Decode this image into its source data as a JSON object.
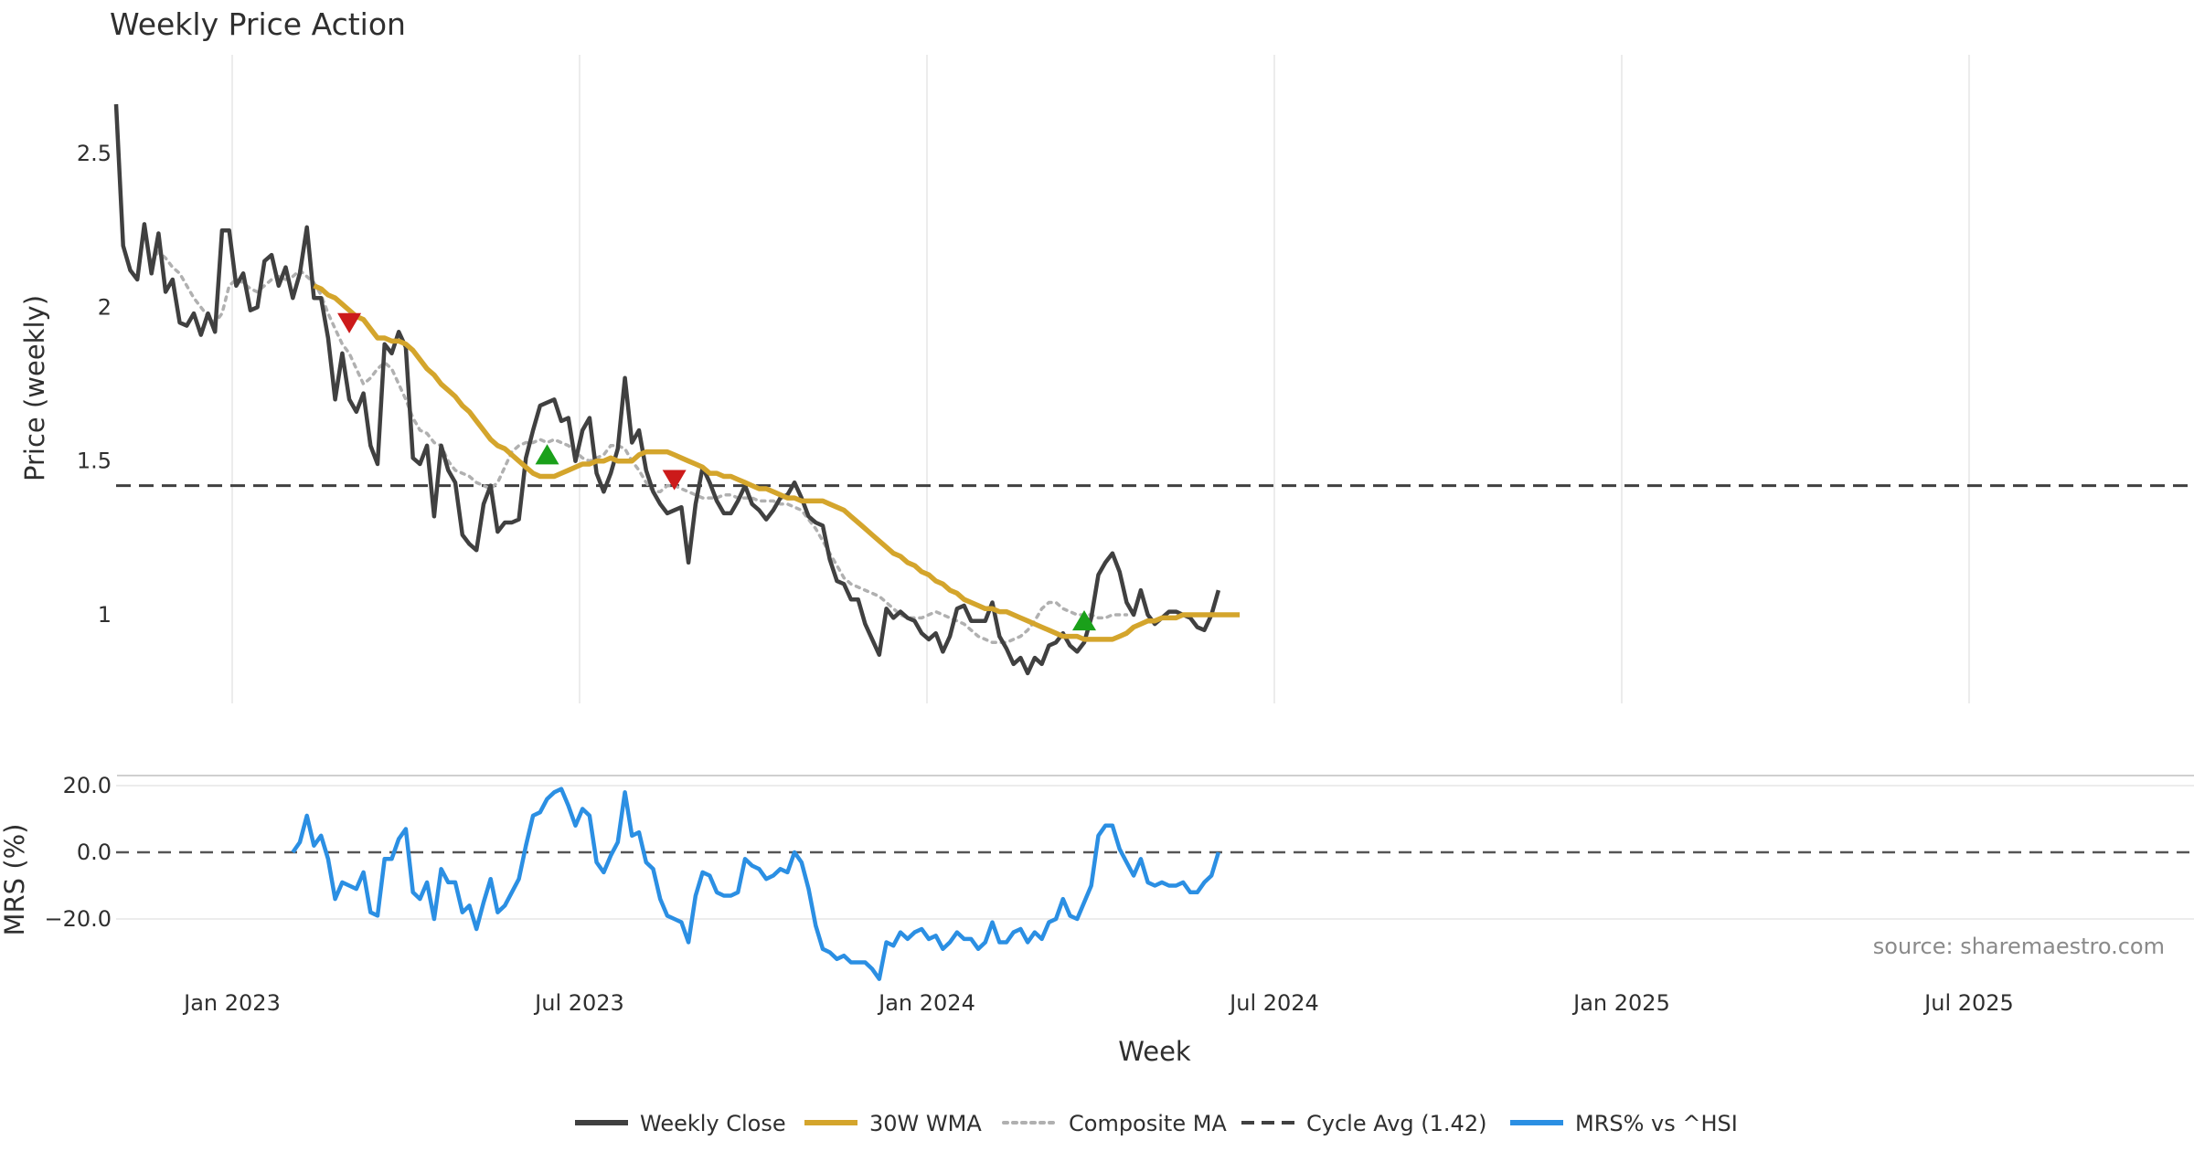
{
  "chart_data": {
    "type": "line",
    "title": "Weekly Price Action",
    "source": "source: sharemaestro.com",
    "xlabel": "Week",
    "x_ticks": [
      {
        "label": "Jan 2023",
        "t": 2023.0
      },
      {
        "label": "Jul 2023",
        "t": 2023.5
      },
      {
        "label": "Jan 2024",
        "t": 2024.0
      },
      {
        "label": "Jul 2024",
        "t": 2024.5
      },
      {
        "label": "Jan 2025",
        "t": 2025.0
      },
      {
        "label": "Jul 2025",
        "t": 2025.5
      }
    ],
    "x_range": [
      2022.833,
      2025.81
    ],
    "price_panel": {
      "ylabel": "Price (weekly)",
      "ylim": [
        0.72,
        2.82
      ],
      "y_ticks": [
        {
          "label": "1",
          "v": 1
        },
        {
          "label": "1.5",
          "v": 1.5
        },
        {
          "label": "2",
          "v": 2
        },
        {
          "label": "2.5",
          "v": 2.5
        }
      ],
      "cycle_avg": 1.42,
      "weekly_close": [
        2.66,
        2.2,
        2.12,
        2.09,
        2.27,
        2.11,
        2.24,
        2.05,
        2.09,
        1.95,
        1.94,
        1.98,
        1.91,
        1.98,
        1.92,
        2.25,
        2.25,
        2.07,
        2.11,
        1.99,
        2.0,
        2.15,
        2.17,
        2.07,
        2.13,
        2.03,
        2.11,
        2.26,
        2.03,
        2.03,
        1.9,
        1.7,
        1.85,
        1.7,
        1.66,
        1.72,
        1.55,
        1.49,
        1.88,
        1.85,
        1.92,
        1.87,
        1.51,
        1.49,
        1.55,
        1.32,
        1.55,
        1.47,
        1.43,
        1.26,
        1.23,
        1.21,
        1.36,
        1.42,
        1.27,
        1.3,
        1.3,
        1.31,
        1.51,
        1.6,
        1.68,
        1.69,
        1.7,
        1.63,
        1.64,
        1.5,
        1.6,
        1.64,
        1.46,
        1.4,
        1.46,
        1.54,
        1.77,
        1.56,
        1.6,
        1.47,
        1.4,
        1.36,
        1.33,
        1.34,
        1.35,
        1.17,
        1.36,
        1.48,
        1.43,
        1.37,
        1.33,
        1.33,
        1.37,
        1.42,
        1.36,
        1.34,
        1.31,
        1.34,
        1.38,
        1.39,
        1.43,
        1.38,
        1.32,
        1.3,
        1.29,
        1.18,
        1.11,
        1.1,
        1.05,
        1.05,
        0.97,
        0.92,
        0.87,
        1.02,
        0.99,
        1.01,
        0.99,
        0.98,
        0.94,
        0.92,
        0.94,
        0.88,
        0.93,
        1.02,
        1.03,
        0.98,
        0.98,
        0.98,
        1.04,
        0.93,
        0.89,
        0.84,
        0.86,
        0.81,
        0.86,
        0.84,
        0.9,
        0.91,
        0.94,
        0.9,
        0.88,
        0.91,
        0.99,
        1.13,
        1.17,
        1.2,
        1.14,
        1.04,
        1.0,
        1.08,
        1.0,
        0.97,
        0.99,
        1.01,
        1.01,
        1.0,
        0.99,
        0.96,
        0.95,
        1.0,
        1.08
      ],
      "wma_30w": [
        2.07,
        2.06,
        2.04,
        2.03,
        2.01,
        1.99,
        1.97,
        1.96,
        1.93,
        1.9,
        1.9,
        1.89,
        1.89,
        1.88,
        1.86,
        1.83,
        1.8,
        1.78,
        1.75,
        1.73,
        1.71,
        1.68,
        1.66,
        1.63,
        1.6,
        1.57,
        1.55,
        1.54,
        1.52,
        1.5,
        1.48,
        1.46,
        1.45,
        1.45,
        1.45,
        1.46,
        1.47,
        1.48,
        1.49,
        1.49,
        1.5,
        1.5,
        1.51,
        1.5,
        1.5,
        1.5,
        1.52,
        1.53,
        1.53,
        1.53,
        1.53,
        1.52,
        1.51,
        1.5,
        1.49,
        1.48,
        1.46,
        1.46,
        1.45,
        1.45,
        1.44,
        1.43,
        1.42,
        1.41,
        1.41,
        1.4,
        1.39,
        1.38,
        1.38,
        1.37,
        1.37,
        1.37,
        1.37,
        1.36,
        1.35,
        1.34,
        1.32,
        1.3,
        1.28,
        1.26,
        1.24,
        1.22,
        1.2,
        1.19,
        1.17,
        1.16,
        1.14,
        1.13,
        1.11,
        1.1,
        1.08,
        1.07,
        1.05,
        1.04,
        1.03,
        1.02,
        1.02,
        1.01,
        1.01,
        1.0,
        0.99,
        0.98,
        0.97,
        0.96,
        0.95,
        0.94,
        0.93,
        0.93,
        0.93,
        0.92,
        0.92,
        0.92,
        0.92,
        0.92,
        0.93,
        0.94,
        0.96,
        0.97,
        0.98,
        0.98,
        0.99,
        0.99,
        0.99,
        1.0,
        1.0,
        1.0,
        1.0,
        1.0,
        1.0,
        1.0,
        1.0,
        1.0
      ],
      "wma_start_index": 28,
      "composite_ma": [
        2.15,
        2.18,
        2.16,
        2.13,
        2.11,
        2.07,
        2.03,
        2.0,
        1.97,
        1.95,
        1.98,
        2.07,
        2.09,
        2.08,
        2.06,
        2.05,
        2.07,
        2.09,
        2.1,
        2.09,
        2.1,
        2.12,
        2.1,
        2.08,
        2.04,
        1.98,
        1.93,
        1.88,
        1.85,
        1.8,
        1.75,
        1.77,
        1.8,
        1.82,
        1.8,
        1.75,
        1.7,
        1.64,
        1.6,
        1.59,
        1.56,
        1.55,
        1.5,
        1.47,
        1.46,
        1.45,
        1.43,
        1.42,
        1.41,
        1.43,
        1.48,
        1.53,
        1.55,
        1.56,
        1.56,
        1.57,
        1.56,
        1.57,
        1.56,
        1.55,
        1.53,
        1.51,
        1.5,
        1.51,
        1.52,
        1.55,
        1.55,
        1.54,
        1.5,
        1.47,
        1.43,
        1.4,
        1.4,
        1.42,
        1.42,
        1.41,
        1.4,
        1.39,
        1.38,
        1.38,
        1.38,
        1.39,
        1.39,
        1.38,
        1.38,
        1.38,
        1.37,
        1.37,
        1.37,
        1.36,
        1.36,
        1.35,
        1.34,
        1.31,
        1.28,
        1.24,
        1.2,
        1.16,
        1.12,
        1.1,
        1.09,
        1.08,
        1.07,
        1.06,
        1.04,
        1.02,
        1.0,
        0.99,
        0.99,
        0.99,
        1.0,
        1.01,
        1.0,
        0.99,
        0.98,
        0.97,
        0.95,
        0.93,
        0.92,
        0.91,
        0.91,
        0.91,
        0.92,
        0.93,
        0.95,
        0.98,
        1.02,
        1.04,
        1.04,
        1.02,
        1.01,
        1.0,
        1.0,
        1.0,
        0.99,
        0.99,
        1.0,
        1.0,
        1.0
      ],
      "composite_start_index": 5,
      "markers": [
        {
          "type": "sell",
          "week_index": 33,
          "price": 1.95
        },
        {
          "type": "buy",
          "week_index": 61,
          "price": 1.52
        },
        {
          "type": "sell",
          "week_index": 79,
          "price": 1.44
        },
        {
          "type": "buy",
          "week_index": 137,
          "price": 0.98
        }
      ]
    },
    "mrs_panel": {
      "ylabel": "MRS (%)",
      "ylim": [
        -37,
        23
      ],
      "y_ticks": [
        {
          "label": "−20.0",
          "v": -20
        },
        {
          "label": "0.0",
          "v": 0
        },
        {
          "label": "20.0",
          "v": 20
        }
      ],
      "start_index": 25,
      "values": [
        0,
        3,
        11,
        2,
        5,
        -2,
        -14,
        -9,
        -10,
        -11,
        -6,
        -18,
        -19,
        -2,
        -2,
        4,
        7,
        -12,
        -14,
        -9,
        -20,
        -5,
        -9,
        -9,
        -18,
        -16,
        -23,
        -15,
        -8,
        -18,
        -16,
        -12,
        -8,
        2,
        11,
        12,
        16,
        18,
        19,
        14,
        8,
        13,
        11,
        -3,
        -6,
        -1,
        3,
        18,
        5,
        6,
        -3,
        -5,
        -14,
        -19,
        -20,
        -21,
        -27,
        -13,
        -6,
        -7,
        -12,
        -13,
        -13,
        -12,
        -2,
        -4,
        -5,
        -8,
        -7,
        -5,
        -6,
        0,
        -3,
        -11,
        -22,
        -29,
        -30,
        -32,
        -31,
        -33,
        -33,
        -33,
        -35,
        -38,
        -27,
        -28,
        -24,
        -26,
        -24,
        -23,
        -26,
        -25,
        -29,
        -27,
        -24,
        -26,
        -26,
        -29,
        -27,
        -21,
        -27,
        -27,
        -24,
        -23,
        -27,
        -24,
        -26,
        -21,
        -20,
        -14,
        -19,
        -20,
        -15,
        -10,
        5,
        8,
        8,
        1,
        -3,
        -7,
        -2,
        -9,
        -10,
        -9,
        -10,
        -10,
        -9,
        -12,
        -12,
        -9,
        -7,
        0
      ]
    },
    "legend": [
      {
        "label": "Weekly Close",
        "color": "#404040",
        "style": "solid"
      },
      {
        "label": "30W WMA",
        "color": "#d4a52c",
        "style": "solid"
      },
      {
        "label": "Composite MA",
        "color": "#b0b0b0",
        "style": "dotted"
      },
      {
        "label": "Cycle Avg (1.42)",
        "color": "#404040",
        "style": "dashed"
      },
      {
        "label": "MRS% vs ^HSI",
        "color": "#2b8fe3",
        "style": "solid"
      }
    ],
    "colors": {
      "close": "#404040",
      "wma": "#d4a52c",
      "composite": "#b0b0b0",
      "cycle": "#404040",
      "mrs": "#2b8fe3",
      "buy": "#1aa01a",
      "sell": "#cc1a1a"
    }
  }
}
